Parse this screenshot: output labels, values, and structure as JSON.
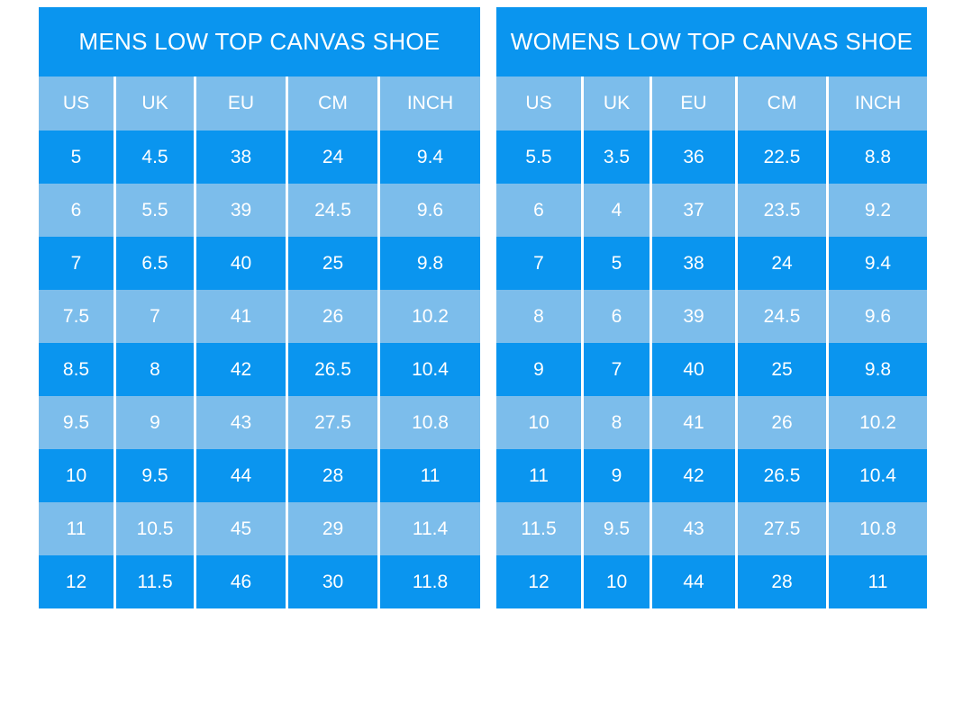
{
  "colors": {
    "primary_blue": "#0a95ef",
    "light_blue": "#7cbdeb",
    "text": "#ffffff",
    "page_background": "#ffffff"
  },
  "chart_data": [
    {
      "type": "table",
      "title": "MENS LOW TOP CANVAS SHOE",
      "columns": [
        "US",
        "UK",
        "EU",
        "CM",
        "INCH"
      ],
      "rows": [
        [
          "5",
          "4.5",
          "38",
          "24",
          "9.4"
        ],
        [
          "6",
          "5.5",
          "39",
          "24.5",
          "9.6"
        ],
        [
          "7",
          "6.5",
          "40",
          "25",
          "9.8"
        ],
        [
          "7.5",
          "7",
          "41",
          "26",
          "10.2"
        ],
        [
          "8.5",
          "8",
          "42",
          "26.5",
          "10.4"
        ],
        [
          "9.5",
          "9",
          "43",
          "27.5",
          "10.8"
        ],
        [
          "10",
          "9.5",
          "44",
          "28",
          "11"
        ],
        [
          "11",
          "10.5",
          "45",
          "29",
          "11.4"
        ],
        [
          "12",
          "11.5",
          "46",
          "30",
          "11.8"
        ]
      ],
      "layout": {
        "row_stripe_start": "dark",
        "separators": "vertical-white-only"
      }
    },
    {
      "type": "table",
      "title": "WOMENS LOW TOP CANVAS SHOE",
      "columns": [
        "US",
        "UK",
        "EU",
        "CM",
        "INCH"
      ],
      "rows": [
        [
          "5.5",
          "3.5",
          "36",
          "22.5",
          "8.8"
        ],
        [
          "6",
          "4",
          "37",
          "23.5",
          "9.2"
        ],
        [
          "7",
          "5",
          "38",
          "24",
          "9.4"
        ],
        [
          "8",
          "6",
          "39",
          "24.5",
          "9.6"
        ],
        [
          "9",
          "7",
          "40",
          "25",
          "9.8"
        ],
        [
          "10",
          "8",
          "41",
          "26",
          "10.2"
        ],
        [
          "11",
          "9",
          "42",
          "26.5",
          "10.4"
        ],
        [
          "11.5",
          "9.5",
          "43",
          "27.5",
          "10.8"
        ],
        [
          "12",
          "10",
          "44",
          "28",
          "11"
        ]
      ],
      "layout": {
        "row_stripe_start": "dark",
        "separators": "vertical-white-only"
      }
    }
  ]
}
